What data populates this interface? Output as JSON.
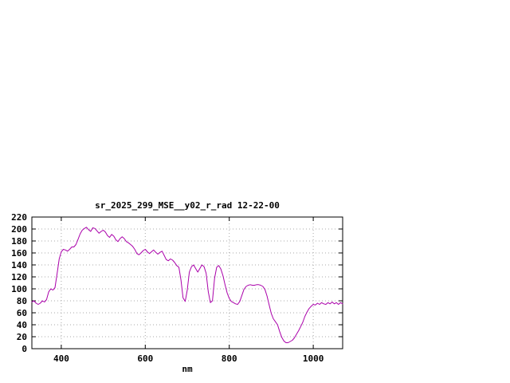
{
  "window": {
    "background": "#ffffff"
  },
  "chart_data": {
    "type": "line",
    "title": "sr_2025_299_MSE__y02_r_rad 12-22-00",
    "xlabel": "nm",
    "ylabel": "",
    "xlim": [
      330,
      1070
    ],
    "ylim": [
      0,
      220
    ],
    "x_ticks": [
      400,
      600,
      800,
      1000
    ],
    "y_ticks": [
      0,
      20,
      40,
      60,
      80,
      100,
      120,
      140,
      160,
      180,
      200,
      220
    ],
    "grid": true,
    "legend": "none",
    "line_color": "#aa00aa",
    "border_color": "#000000",
    "grid_color": "#a8a8a8",
    "series": [
      {
        "name": "spectrum",
        "x": [
          330,
          335,
          340,
          345,
          350,
          355,
          360,
          365,
          370,
          375,
          380,
          385,
          390,
          395,
          400,
          405,
          410,
          415,
          420,
          425,
          430,
          435,
          440,
          445,
          450,
          455,
          460,
          465,
          470,
          475,
          480,
          485,
          490,
          495,
          500,
          505,
          510,
          515,
          520,
          525,
          530,
          535,
          540,
          545,
          550,
          555,
          560,
          565,
          570,
          575,
          580,
          585,
          590,
          595,
          600,
          605,
          610,
          615,
          620,
          625,
          630,
          635,
          640,
          645,
          650,
          655,
          660,
          665,
          670,
          675,
          680,
          685,
          690,
          695,
          700,
          705,
          710,
          715,
          720,
          725,
          730,
          735,
          740,
          745,
          750,
          755,
          760,
          765,
          770,
          775,
          780,
          785,
          790,
          795,
          800,
          805,
          810,
          815,
          820,
          825,
          830,
          835,
          840,
          845,
          850,
          855,
          860,
          865,
          870,
          875,
          880,
          885,
          890,
          895,
          900,
          905,
          910,
          915,
          920,
          925,
          930,
          935,
          940,
          945,
          950,
          955,
          960,
          965,
          970,
          975,
          980,
          985,
          990,
          995,
          1000,
          1005,
          1010,
          1015,
          1020,
          1025,
          1030,
          1035,
          1040,
          1045,
          1050,
          1055,
          1060,
          1065,
          1070
        ],
        "y": [
          78,
          80,
          76,
          74,
          76,
          80,
          78,
          82,
          95,
          100,
          98,
          102,
          125,
          150,
          162,
          166,
          165,
          163,
          166,
          170,
          170,
          174,
          183,
          192,
          198,
          201,
          203,
          199,
          196,
          202,
          201,
          197,
          193,
          196,
          198,
          195,
          189,
          186,
          191,
          188,
          182,
          179,
          184,
          187,
          184,
          179,
          177,
          174,
          171,
          166,
          159,
          157,
          160,
          164,
          166,
          162,
          159,
          162,
          165,
          161,
          158,
          161,
          163,
          156,
          149,
          147,
          150,
          148,
          144,
          139,
          136,
          115,
          85,
          79,
          98,
          128,
          137,
          140,
          134,
          128,
          134,
          140,
          137,
          126,
          95,
          77,
          80,
          118,
          136,
          139,
          133,
          122,
          107,
          93,
          84,
          79,
          77,
          75,
          74,
          79,
          89,
          99,
          104,
          106,
          107,
          106,
          106,
          107,
          107,
          106,
          104,
          99,
          88,
          73,
          59,
          50,
          45,
          40,
          29,
          19,
          13,
          10,
          10,
          12,
          14,
          18,
          24,
          30,
          37,
          44,
          54,
          61,
          67,
          71,
          74,
          73,
          76,
          74,
          77,
          75,
          74,
          77,
          75,
          78,
          75,
          77,
          74,
          77,
          75
        ]
      }
    ]
  }
}
